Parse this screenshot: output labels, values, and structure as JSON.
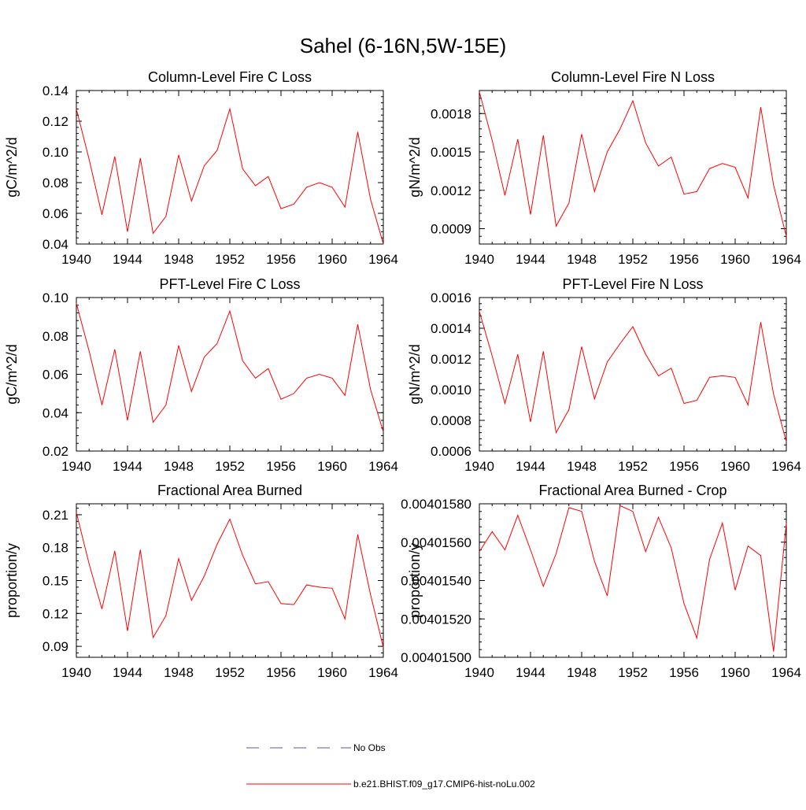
{
  "title": "Sahel (6-16N,5W-15E)",
  "colors": {
    "model": "#ff0000",
    "obs": "#5555aa",
    "axis": "#000000"
  },
  "legend": {
    "placement": "bottom-center",
    "entries": [
      {
        "label": "No Obs",
        "style": "dashed",
        "color": "#5555aa"
      },
      {
        "label": "b.e21.BHIST.f09_g17.CMIP6-hist-noLu.002",
        "style": "solid",
        "color": "#ff0000"
      }
    ]
  },
  "chart_data": [
    {
      "type": "line",
      "title": "Column-Level Fire C Loss",
      "ylabel": "gC/m^2/d",
      "xlabel": "",
      "xlim": [
        1940,
        1964
      ],
      "ylim": [
        0.04,
        0.14
      ],
      "xticks": [
        "1940",
        "1944",
        "1948",
        "1952",
        "1956",
        "1960",
        "1964"
      ],
      "yticks": [
        "0.04",
        "0.06",
        "0.08",
        "0.10",
        "0.12",
        "0.14"
      ],
      "x": [
        1940,
        1941,
        1942,
        1943,
        1944,
        1945,
        1946,
        1947,
        1948,
        1949,
        1950,
        1951,
        1952,
        1953,
        1954,
        1955,
        1956,
        1957,
        1958,
        1959,
        1960,
        1961,
        1962,
        1963,
        1964
      ],
      "series": [
        {
          "name": "b.e21.BHIST.f09_g17.CMIP6-hist-noLu.002",
          "values": [
            0.128,
            0.095,
            0.059,
            0.097,
            0.048,
            0.096,
            0.047,
            0.058,
            0.098,
            0.068,
            0.091,
            0.101,
            0.128,
            0.089,
            0.078,
            0.084,
            0.063,
            0.066,
            0.077,
            0.08,
            0.077,
            0.064,
            0.113,
            0.069,
            0.04
          ]
        }
      ]
    },
    {
      "type": "line",
      "title": "Column-Level Fire N Loss",
      "ylabel": "gN/m^2/d",
      "xlabel": "",
      "xlim": [
        1940,
        1964
      ],
      "ylim": [
        0.00078,
        0.00198
      ],
      "xticks": [
        "1940",
        "1944",
        "1948",
        "1952",
        "1956",
        "1960",
        "1964"
      ],
      "yticks": [
        "0.0009",
        "0.0012",
        "0.0015",
        "0.0018"
      ],
      "x": [
        1940,
        1941,
        1942,
        1943,
        1944,
        1945,
        1946,
        1947,
        1948,
        1949,
        1950,
        1951,
        1952,
        1953,
        1954,
        1955,
        1956,
        1957,
        1958,
        1959,
        1960,
        1961,
        1962,
        1963,
        1964
      ],
      "series": [
        {
          "name": "b.e21.BHIST.f09_g17.CMIP6-hist-noLu.002",
          "values": [
            0.00197,
            0.00159,
            0.00116,
            0.0016,
            0.00101,
            0.00163,
            0.00092,
            0.0011,
            0.00164,
            0.00119,
            0.0015,
            0.00168,
            0.0019,
            0.00157,
            0.00139,
            0.00146,
            0.00117,
            0.00119,
            0.00137,
            0.00141,
            0.00138,
            0.00114,
            0.00185,
            0.00124,
            0.00084
          ]
        }
      ]
    },
    {
      "type": "line",
      "title": "PFT-Level Fire C Loss",
      "ylabel": "gC/m^2/d",
      "xlabel": "",
      "xlim": [
        1940,
        1964
      ],
      "ylim": [
        0.02,
        0.1
      ],
      "xticks": [
        "1940",
        "1944",
        "1948",
        "1952",
        "1956",
        "1960",
        "1964"
      ],
      "yticks": [
        "0.02",
        "0.04",
        "0.06",
        "0.08",
        "0.10"
      ],
      "x": [
        1940,
        1941,
        1942,
        1943,
        1944,
        1945,
        1946,
        1947,
        1948,
        1949,
        1950,
        1951,
        1952,
        1953,
        1954,
        1955,
        1956,
        1957,
        1958,
        1959,
        1960,
        1961,
        1962,
        1963,
        1964
      ],
      "series": [
        {
          "name": "b.e21.BHIST.f09_g17.CMIP6-hist-noLu.002",
          "values": [
            0.097,
            0.072,
            0.044,
            0.073,
            0.036,
            0.072,
            0.035,
            0.044,
            0.075,
            0.051,
            0.069,
            0.076,
            0.093,
            0.067,
            0.058,
            0.063,
            0.047,
            0.05,
            0.058,
            0.06,
            0.058,
            0.049,
            0.086,
            0.052,
            0.03
          ]
        }
      ]
    },
    {
      "type": "line",
      "title": "PFT-Level Fire N Loss",
      "ylabel": "gN/m^2/d",
      "xlabel": "",
      "xlim": [
        1940,
        1964
      ],
      "ylim": [
        0.0006,
        0.0016
      ],
      "xticks": [
        "1940",
        "1944",
        "1948",
        "1952",
        "1956",
        "1960",
        "1964"
      ],
      "yticks": [
        "0.0006",
        "0.0008",
        "0.0010",
        "0.0012",
        "0.0014",
        "0.0016"
      ],
      "x": [
        1940,
        1941,
        1942,
        1943,
        1944,
        1945,
        1946,
        1947,
        1948,
        1949,
        1950,
        1951,
        1952,
        1953,
        1954,
        1955,
        1956,
        1957,
        1958,
        1959,
        1960,
        1961,
        1962,
        1963,
        1964
      ],
      "series": [
        {
          "name": "b.e21.BHIST.f09_g17.CMIP6-hist-noLu.002",
          "values": [
            0.00151,
            0.00122,
            0.00091,
            0.00123,
            0.00079,
            0.00125,
            0.00072,
            0.00087,
            0.00128,
            0.00094,
            0.00118,
            0.0013,
            0.00141,
            0.00123,
            0.00109,
            0.00114,
            0.00091,
            0.00093,
            0.00108,
            0.00109,
            0.00108,
            0.0009,
            0.00144,
            0.00097,
            0.00066
          ]
        }
      ]
    },
    {
      "type": "line",
      "title": "Fractional Area Burned",
      "ylabel": "proportion/y",
      "xlabel": "",
      "xlim": [
        1940,
        1964
      ],
      "ylim": [
        0.08,
        0.22
      ],
      "xticks": [
        "1940",
        "1944",
        "1948",
        "1952",
        "1956",
        "1960",
        "1964"
      ],
      "yticks": [
        "0.09",
        "0.12",
        "0.15",
        "0.18",
        "0.21"
      ],
      "x": [
        1940,
        1941,
        1942,
        1943,
        1944,
        1945,
        1946,
        1947,
        1948,
        1949,
        1950,
        1951,
        1952,
        1953,
        1954,
        1955,
        1956,
        1957,
        1958,
        1959,
        1960,
        1961,
        1962,
        1963,
        1964
      ],
      "series": [
        {
          "name": "b.e21.BHIST.f09_g17.CMIP6-hist-noLu.002",
          "values": [
            0.212,
            0.165,
            0.124,
            0.177,
            0.104,
            0.178,
            0.098,
            0.118,
            0.17,
            0.132,
            0.154,
            0.183,
            0.206,
            0.173,
            0.147,
            0.149,
            0.129,
            0.128,
            0.146,
            0.144,
            0.143,
            0.115,
            0.192,
            0.137,
            0.089
          ]
        }
      ]
    },
    {
      "type": "line",
      "title": "Fractional Area Burned - Crop",
      "ylabel": "proportion/y",
      "xlabel": "",
      "xlim": [
        1940,
        1964
      ],
      "ylim": [
        0.004015,
        0.0040158
      ],
      "xticks": [
        "1940",
        "1944",
        "1948",
        "1952",
        "1956",
        "1960",
        "1964"
      ],
      "yticks": [
        "0.00401500",
        "0.00401520",
        "0.00401540",
        "0.00401560",
        "0.00401580"
      ],
      "x": [
        1940,
        1941,
        1942,
        1943,
        1944,
        1945,
        1946,
        1947,
        1948,
        1949,
        1950,
        1951,
        1952,
        1953,
        1954,
        1955,
        1956,
        1957,
        1958,
        1959,
        1960,
        1961,
        1962,
        1963,
        1964
      ],
      "series": [
        {
          "name": "b.e21.BHIST.f09_g17.CMIP6-hist-noLu.002",
          "values": [
            0.00401555,
            0.004015655,
            0.00401556,
            0.00401574,
            0.00401556,
            0.00401537,
            0.00401554,
            0.00401578,
            0.00401576,
            0.0040155,
            0.00401532,
            0.00401579,
            0.00401576,
            0.00401555,
            0.00401573,
            0.00401557,
            0.00401528,
            0.0040151,
            0.00401551,
            0.0040157,
            0.00401535,
            0.00401558,
            0.00401553,
            0.00401503,
            0.0040157
          ]
        }
      ]
    }
  ]
}
